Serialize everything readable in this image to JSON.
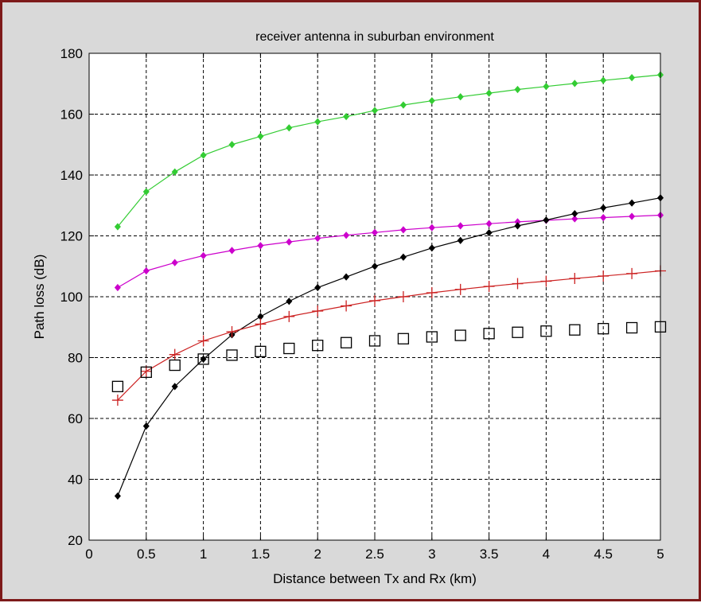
{
  "chart_data": {
    "type": "line",
    "title": "receiver antenna in suburban environment",
    "xlabel": "Distance between Tx and Rx (km)",
    "ylabel": "Path loss (dB)",
    "xlim": [
      0,
      5
    ],
    "ylim": [
      20,
      180
    ],
    "xticks": [
      0,
      0.5,
      1,
      1.5,
      2,
      2.5,
      3,
      3.5,
      4,
      4.5,
      5
    ],
    "xtick_labels": [
      "0",
      "0.5",
      "1",
      "1.5",
      "2",
      "2.5",
      "3",
      "3.5",
      "4",
      "4.5",
      "5"
    ],
    "yticks": [
      20,
      40,
      60,
      80,
      100,
      120,
      140,
      160,
      180
    ],
    "ytick_labels": [
      "20",
      "40",
      "60",
      "80",
      "100",
      "120",
      "140",
      "160",
      "180"
    ],
    "grid": true,
    "x": [
      0.25,
      0.5,
      0.75,
      1,
      1.25,
      1.5,
      1.75,
      2,
      2.25,
      2.5,
      2.75,
      3,
      3.25,
      3.5,
      3.75,
      4,
      4.25,
      4.5,
      4.75,
      5
    ],
    "series": [
      {
        "color": "#33cc33",
        "marker": "diamond",
        "line": true,
        "values": [
          123,
          134.5,
          141,
          146.5,
          150,
          152.7,
          155.5,
          157.5,
          159.2,
          161.2,
          163,
          164.4,
          165.7,
          166.9,
          168.1,
          169.1,
          170.1,
          171.1,
          172,
          172.9
        ]
      },
      {
        "color": "#cc00cc",
        "marker": "diamond",
        "line": true,
        "values": [
          103,
          108.5,
          111.2,
          113.5,
          115.2,
          116.8,
          118,
          119.2,
          120.2,
          121.1,
          122,
          122.7,
          123.3,
          124,
          124.6,
          125.1,
          125.6,
          126,
          126.4,
          126.8
        ]
      },
      {
        "color": "#000000",
        "marker": "diamond",
        "line": true,
        "values": [
          34.5,
          57.5,
          70.5,
          79.5,
          87.5,
          93.5,
          98.5,
          103,
          106.5,
          110,
          113,
          116,
          118.5,
          121,
          123.3,
          125.2,
          127.3,
          129.2,
          130.8,
          132.5
        ]
      },
      {
        "color": "#cc2222",
        "marker": "plus",
        "line": true,
        "values": [
          66,
          75.5,
          81,
          85.5,
          88.5,
          91,
          93.5,
          95.3,
          97,
          98.7,
          100,
          101.3,
          102.4,
          103.4,
          104.3,
          105.1,
          106,
          106.8,
          107.6,
          108.5
        ]
      },
      {
        "color": "#000000",
        "marker": "square",
        "line": false,
        "values": [
          70.5,
          75.2,
          77.5,
          79.5,
          80.8,
          82,
          83,
          84,
          84.9,
          85.5,
          86.2,
          86.8,
          87.3,
          87.9,
          88.3,
          88.7,
          89.1,
          89.5,
          89.8,
          90.1
        ]
      }
    ]
  }
}
